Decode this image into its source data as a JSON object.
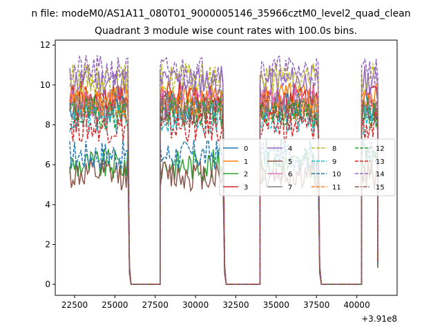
{
  "figure": {
    "suptitle": "n file: modeM0/AS1A11_080T01_9000005146_35966cztM0_level2_quad_clean",
    "offset_label": "+3.91e8"
  },
  "chart_data": {
    "type": "line",
    "title": "Quadrant 3 module wise count rates with 100.0s bins.",
    "xlabel": "",
    "ylabel": "",
    "xlim": [
      21300,
      42500
    ],
    "ylim": [
      -0.55,
      12.25
    ],
    "x_ticks": [
      22500,
      25000,
      27500,
      30000,
      32500,
      35000,
      37500,
      40000
    ],
    "x_tick_labels": [
      "22500",
      "25000",
      "27500",
      "30000",
      "32500",
      "35000",
      "37500",
      "40000"
    ],
    "y_ticks": [
      0,
      2,
      4,
      6,
      8,
      10,
      12
    ],
    "y_tick_labels": [
      "0",
      "2",
      "4",
      "6",
      "8",
      "10",
      "12"
    ],
    "grid": false,
    "legend_placement": "center-right",
    "legend_columns": 4,
    "segments": [
      {
        "on": [
          22200,
          25800
        ],
        "falloff_end": 26000
      },
      {
        "on": [
          27800,
          31700
        ],
        "falloff_end": 31900
      },
      {
        "on": [
          34000,
          37600
        ],
        "falloff_end": 37800
      },
      {
        "on": [
          40300,
          41300
        ],
        "falloff_end": 41300
      }
    ],
    "off_ranges": [
      [
        26000,
        27800
      ],
      [
        31900,
        34000
      ],
      [
        37800,
        40300
      ]
    ],
    "series": [
      {
        "name": "0",
        "color": "#1f77b4",
        "dash": "solid",
        "level": 9.0
      },
      {
        "name": "1",
        "color": "#ff7f0e",
        "dash": "solid",
        "level": 9.3
      },
      {
        "name": "2",
        "color": "#2ca02c",
        "dash": "solid",
        "level": 6.0
      },
      {
        "name": "3",
        "color": "#d62728",
        "dash": "solid",
        "level": 9.4
      },
      {
        "name": "4",
        "color": "#9467bd",
        "dash": "solid",
        "level": 10.2
      },
      {
        "name": "5",
        "color": "#8c564b",
        "dash": "solid",
        "level": 5.5
      },
      {
        "name": "6",
        "color": "#e377c2",
        "dash": "solid",
        "level": 9.1
      },
      {
        "name": "7",
        "color": "#7f7f7f",
        "dash": "solid",
        "level": 8.8
      },
      {
        "name": "8",
        "color": "#bcbd22",
        "dash": "dashed",
        "level": 10.3
      },
      {
        "name": "9",
        "color": "#17becf",
        "dash": "dashed",
        "level": 8.3
      },
      {
        "name": "10",
        "color": "#1f77b4",
        "dash": "dashed",
        "level": 6.5
      },
      {
        "name": "11",
        "color": "#ff7f0e",
        "dash": "dashed",
        "level": 9.0
      },
      {
        "name": "12",
        "color": "#2ca02c",
        "dash": "dashed",
        "level": 8.6
      },
      {
        "name": "13",
        "color": "#d62728",
        "dash": "dashed",
        "level": 7.9
      },
      {
        "name": "14",
        "color": "#9467bd",
        "dash": "dashed",
        "level": 10.7
      },
      {
        "name": "15",
        "color": "#8c564b",
        "dash": "dashdot",
        "level": 8.7
      }
    ]
  }
}
